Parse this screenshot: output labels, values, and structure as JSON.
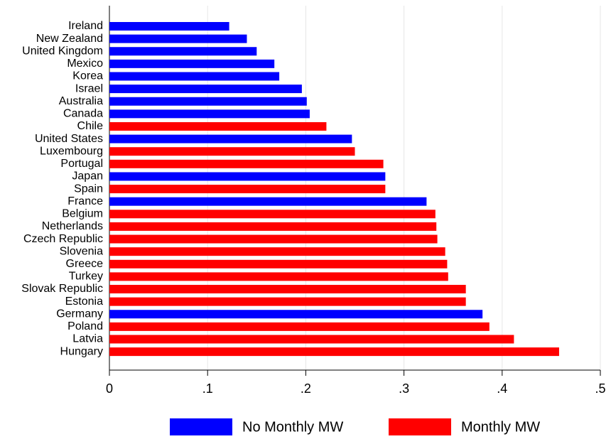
{
  "chart_data": {
    "type": "bar",
    "orientation": "horizontal",
    "categories": [
      "Ireland",
      "New Zealand",
      "United Kingdom",
      "Mexico",
      "Korea",
      "Israel",
      "Australia",
      "Canada",
      "Chile",
      "United States",
      "Luxembourg",
      "Portugal",
      "Japan",
      "Spain",
      "France",
      "Belgium",
      "Netherlands",
      "Czech Republic",
      "Slovenia",
      "Greece",
      "Turkey",
      "Slovak Republic",
      "Estonia",
      "Germany",
      "Poland",
      "Latvia",
      "Hungary"
    ],
    "series": [
      {
        "name": "No Monthly MW",
        "color": "#0000ff",
        "values": [
          0.122,
          0.14,
          0.15,
          0.168,
          0.173,
          0.196,
          0.201,
          0.204,
          null,
          0.247,
          null,
          null,
          0.281,
          null,
          0.323,
          null,
          null,
          null,
          null,
          null,
          null,
          null,
          null,
          0.38,
          null,
          null,
          null
        ]
      },
      {
        "name": "Monthly MW",
        "color": "#ff0000",
        "values": [
          null,
          null,
          null,
          null,
          null,
          null,
          null,
          null,
          0.221,
          null,
          0.25,
          0.279,
          null,
          0.281,
          null,
          0.332,
          0.333,
          0.334,
          0.342,
          0.344,
          0.345,
          0.363,
          0.363,
          null,
          0.387,
          0.412,
          0.458
        ]
      }
    ],
    "xlim": [
      0,
      0.5
    ],
    "xticks": [
      0,
      {
        "value": 0.1,
        "label": ".1"
      },
      {
        "value": 0.2,
        "label": ".2"
      },
      {
        "value": 0.3,
        "label": ".3"
      },
      {
        "value": 0.4,
        "label": ".4"
      },
      {
        "value": 0.5,
        "label": ".5"
      }
    ],
    "grid": true,
    "legend": "bottom"
  }
}
